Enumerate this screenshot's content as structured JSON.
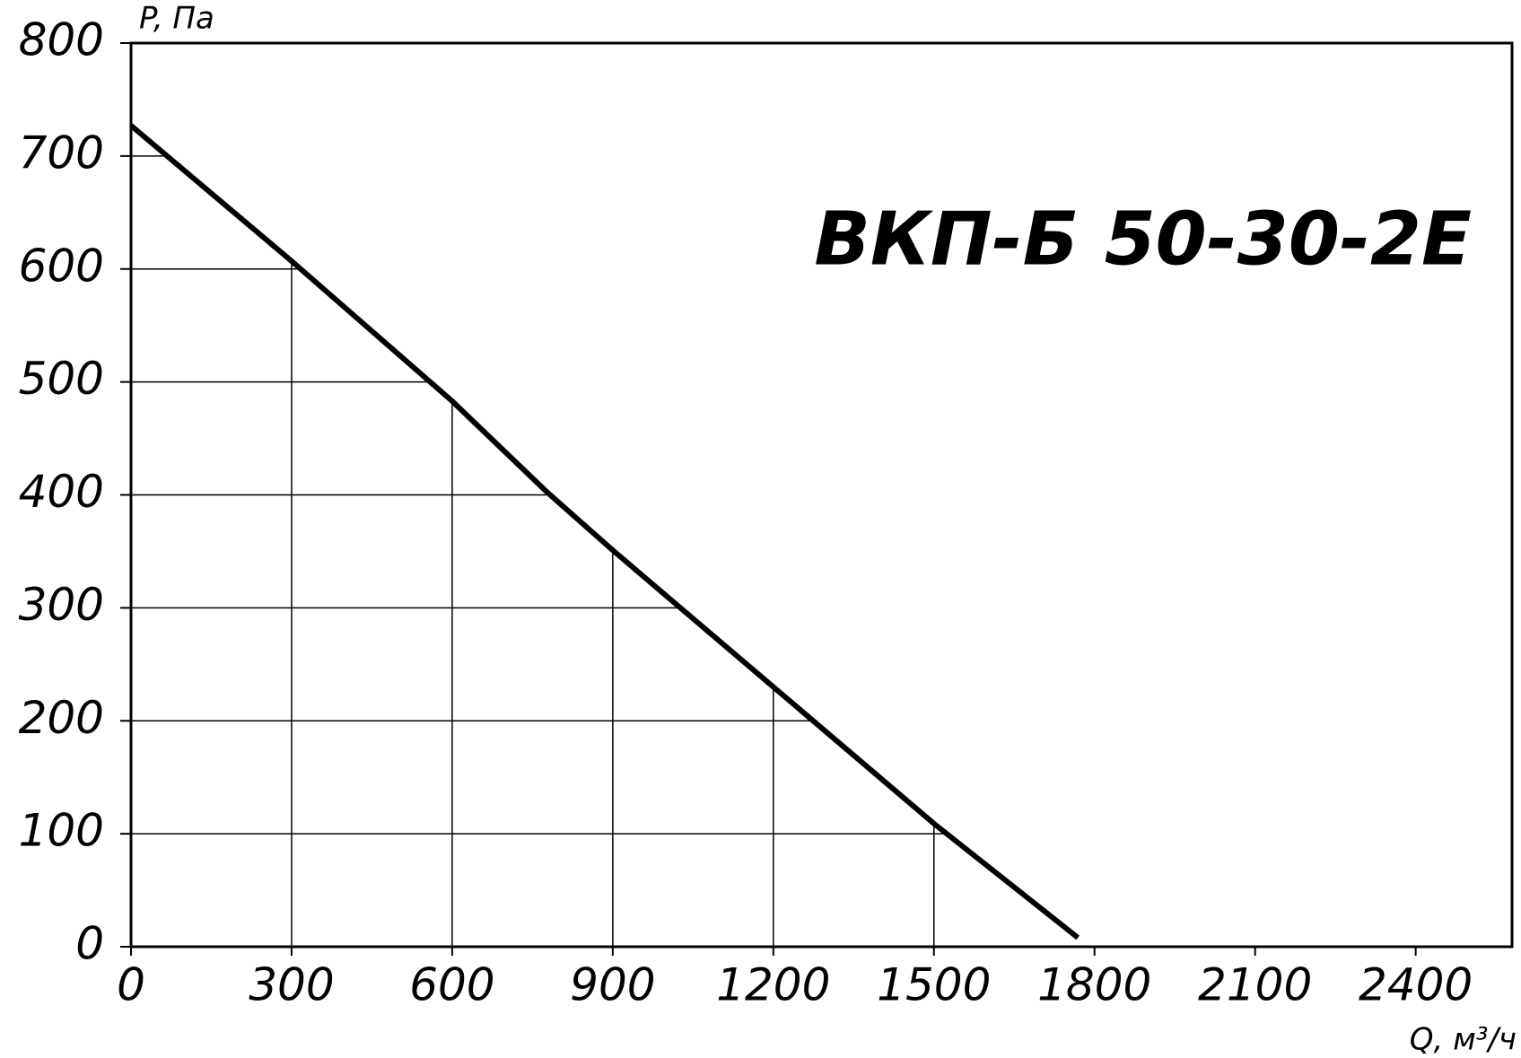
{
  "chart_data": {
    "type": "line",
    "title": "ВКП-Б 50-30-2Е",
    "y_label": "P, Па",
    "x_label": "Q, м³/ч",
    "series": [
      {
        "color": "#000000",
        "x": [
          0,
          300,
          600,
          776,
          900,
          1200,
          1500,
          1769
        ],
        "values": [
          727,
          607,
          483,
          403,
          351,
          230,
          109,
          8
        ]
      }
    ],
    "xlim": [
      0,
      2580
    ],
    "ylim": [
      0,
      800
    ],
    "xticks": [
      0,
      300,
      600,
      900,
      1200,
      1500,
      1800,
      2100,
      2400
    ],
    "yticks": [
      0,
      100,
      200,
      300,
      400,
      500,
      600,
      700,
      800
    ],
    "grid": true
  }
}
